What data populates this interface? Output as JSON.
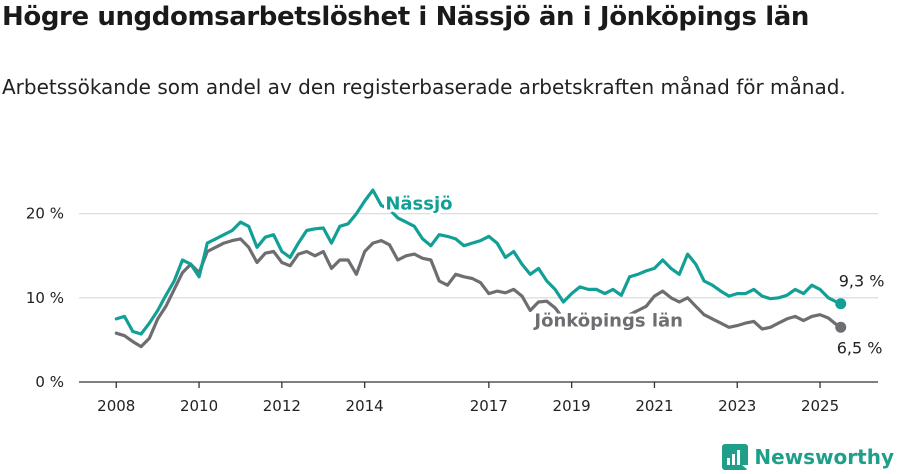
{
  "header": {
    "title": "Högre ungdomsarbetslöshet i Nässjö än i Jönköpings län",
    "subtitle": "Arbetssökande som andel av den registerbaserade arbetskraften månad för månad."
  },
  "brand": {
    "name": "Newsworthy"
  },
  "colors": {
    "nassjo": "#12a096",
    "lan": "#6e6d72",
    "grid": "#d9d9d9",
    "axis": "#333333"
  },
  "chart_data": {
    "type": "line",
    "x_ticks": [
      2008,
      2010,
      2012,
      2014,
      2017,
      2019,
      2021,
      2023,
      2025
    ],
    "y_ticks": [
      0,
      10,
      20
    ],
    "y_tick_labels": [
      "0 %",
      "10 %",
      "20 %"
    ],
    "xlim": [
      2007.1,
      2026.4
    ],
    "ylim": [
      0,
      24
    ],
    "series": [
      {
        "name": "Nässjö",
        "end_label": "9,3 %",
        "points": [
          [
            2008.0,
            7.5
          ],
          [
            2008.2,
            7.8
          ],
          [
            2008.4,
            6.0
          ],
          [
            2008.6,
            5.7
          ],
          [
            2008.8,
            7.0
          ],
          [
            2009.0,
            8.5
          ],
          [
            2009.2,
            10.3
          ],
          [
            2009.4,
            12.0
          ],
          [
            2009.6,
            14.5
          ],
          [
            2009.8,
            14.0
          ],
          [
            2010.0,
            12.5
          ],
          [
            2010.2,
            16.5
          ],
          [
            2010.4,
            17.0
          ],
          [
            2010.6,
            17.5
          ],
          [
            2010.8,
            18.0
          ],
          [
            2011.0,
            19.0
          ],
          [
            2011.2,
            18.5
          ],
          [
            2011.4,
            16.0
          ],
          [
            2011.6,
            17.2
          ],
          [
            2011.8,
            17.5
          ],
          [
            2012.0,
            15.5
          ],
          [
            2012.2,
            14.8
          ],
          [
            2012.4,
            16.5
          ],
          [
            2012.6,
            18.0
          ],
          [
            2012.8,
            18.2
          ],
          [
            2013.0,
            18.3
          ],
          [
            2013.2,
            16.5
          ],
          [
            2013.4,
            18.5
          ],
          [
            2013.6,
            18.8
          ],
          [
            2013.8,
            20.0
          ],
          [
            2014.0,
            21.5
          ],
          [
            2014.2,
            22.8
          ],
          [
            2014.4,
            21.0
          ],
          [
            2014.6,
            20.5
          ],
          [
            2014.8,
            19.5
          ],
          [
            2015.0,
            19.0
          ],
          [
            2015.2,
            18.5
          ],
          [
            2015.4,
            17.0
          ],
          [
            2015.6,
            16.2
          ],
          [
            2015.8,
            17.5
          ],
          [
            2016.0,
            17.3
          ],
          [
            2016.2,
            17.0
          ],
          [
            2016.4,
            16.2
          ],
          [
            2016.6,
            16.5
          ],
          [
            2016.8,
            16.8
          ],
          [
            2017.0,
            17.3
          ],
          [
            2017.2,
            16.5
          ],
          [
            2017.4,
            14.8
          ],
          [
            2017.6,
            15.5
          ],
          [
            2017.8,
            14.0
          ],
          [
            2018.0,
            12.8
          ],
          [
            2018.2,
            13.5
          ],
          [
            2018.4,
            12.0
          ],
          [
            2018.6,
            11.0
          ],
          [
            2018.8,
            9.5
          ],
          [
            2019.0,
            10.5
          ],
          [
            2019.2,
            11.3
          ],
          [
            2019.4,
            11.0
          ],
          [
            2019.6,
            11.0
          ],
          [
            2019.8,
            10.5
          ],
          [
            2020.0,
            11.0
          ],
          [
            2020.2,
            10.3
          ],
          [
            2020.4,
            12.5
          ],
          [
            2020.6,
            12.8
          ],
          [
            2020.8,
            13.2
          ],
          [
            2021.0,
            13.5
          ],
          [
            2021.2,
            14.5
          ],
          [
            2021.4,
            13.5
          ],
          [
            2021.6,
            12.8
          ],
          [
            2021.8,
            15.2
          ],
          [
            2022.0,
            14.0
          ],
          [
            2022.2,
            12.0
          ],
          [
            2022.4,
            11.5
          ],
          [
            2022.6,
            10.8
          ],
          [
            2022.8,
            10.2
          ],
          [
            2023.0,
            10.5
          ],
          [
            2023.2,
            10.5
          ],
          [
            2023.4,
            11.0
          ],
          [
            2023.6,
            10.2
          ],
          [
            2023.8,
            9.9
          ],
          [
            2024.0,
            10.0
          ],
          [
            2024.2,
            10.3
          ],
          [
            2024.4,
            11.0
          ],
          [
            2024.6,
            10.5
          ],
          [
            2024.8,
            11.5
          ],
          [
            2025.0,
            11.0
          ],
          [
            2025.2,
            10.0
          ],
          [
            2025.4,
            9.5
          ],
          [
            2025.5,
            9.3
          ]
        ]
      },
      {
        "name": "Jönköpings län",
        "end_label": "6,5 %",
        "points": [
          [
            2008.0,
            5.8
          ],
          [
            2008.2,
            5.5
          ],
          [
            2008.4,
            4.8
          ],
          [
            2008.6,
            4.2
          ],
          [
            2008.8,
            5.2
          ],
          [
            2009.0,
            7.5
          ],
          [
            2009.2,
            9.0
          ],
          [
            2009.4,
            11.0
          ],
          [
            2009.6,
            13.0
          ],
          [
            2009.8,
            14.0
          ],
          [
            2010.0,
            13.0
          ],
          [
            2010.2,
            15.5
          ],
          [
            2010.4,
            16.0
          ],
          [
            2010.6,
            16.5
          ],
          [
            2010.8,
            16.8
          ],
          [
            2011.0,
            17.0
          ],
          [
            2011.2,
            16.0
          ],
          [
            2011.4,
            14.2
          ],
          [
            2011.6,
            15.3
          ],
          [
            2011.8,
            15.5
          ],
          [
            2012.0,
            14.2
          ],
          [
            2012.2,
            13.8
          ],
          [
            2012.4,
            15.2
          ],
          [
            2012.6,
            15.5
          ],
          [
            2012.8,
            15.0
          ],
          [
            2013.0,
            15.5
          ],
          [
            2013.2,
            13.5
          ],
          [
            2013.4,
            14.5
          ],
          [
            2013.6,
            14.5
          ],
          [
            2013.8,
            12.8
          ],
          [
            2014.0,
            15.5
          ],
          [
            2014.2,
            16.5
          ],
          [
            2014.4,
            16.8
          ],
          [
            2014.6,
            16.3
          ],
          [
            2014.8,
            14.5
          ],
          [
            2015.0,
            15.0
          ],
          [
            2015.2,
            15.2
          ],
          [
            2015.4,
            14.7
          ],
          [
            2015.6,
            14.5
          ],
          [
            2015.8,
            12.0
          ],
          [
            2016.0,
            11.5
          ],
          [
            2016.2,
            12.8
          ],
          [
            2016.4,
            12.5
          ],
          [
            2016.6,
            12.3
          ],
          [
            2016.8,
            11.8
          ],
          [
            2017.0,
            10.5
          ],
          [
            2017.2,
            10.8
          ],
          [
            2017.4,
            10.6
          ],
          [
            2017.6,
            11.0
          ],
          [
            2017.8,
            10.2
          ],
          [
            2018.0,
            8.5
          ],
          [
            2018.2,
            9.5
          ],
          [
            2018.4,
            9.6
          ],
          [
            2018.6,
            8.8
          ],
          [
            2018.8,
            7.5
          ],
          [
            2019.0,
            7.8
          ],
          [
            2019.2,
            7.5
          ],
          [
            2019.4,
            7.6
          ],
          [
            2019.6,
            7.2
          ],
          [
            2019.8,
            7.0
          ],
          [
            2020.0,
            7.2
          ],
          [
            2020.2,
            7.5
          ],
          [
            2020.4,
            8.0
          ],
          [
            2020.6,
            8.5
          ],
          [
            2020.8,
            9.0
          ],
          [
            2021.0,
            10.2
          ],
          [
            2021.2,
            10.8
          ],
          [
            2021.4,
            10.0
          ],
          [
            2021.6,
            9.5
          ],
          [
            2021.8,
            10.0
          ],
          [
            2022.0,
            9.0
          ],
          [
            2022.2,
            8.0
          ],
          [
            2022.4,
            7.5
          ],
          [
            2022.6,
            7.0
          ],
          [
            2022.8,
            6.5
          ],
          [
            2023.0,
            6.7
          ],
          [
            2023.2,
            7.0
          ],
          [
            2023.4,
            7.2
          ],
          [
            2023.6,
            6.3
          ],
          [
            2023.8,
            6.5
          ],
          [
            2024.0,
            7.0
          ],
          [
            2024.2,
            7.5
          ],
          [
            2024.4,
            7.8
          ],
          [
            2024.6,
            7.3
          ],
          [
            2024.8,
            7.8
          ],
          [
            2025.0,
            8.0
          ],
          [
            2025.2,
            7.6
          ],
          [
            2025.4,
            6.8
          ],
          [
            2025.5,
            6.5
          ]
        ]
      }
    ]
  }
}
